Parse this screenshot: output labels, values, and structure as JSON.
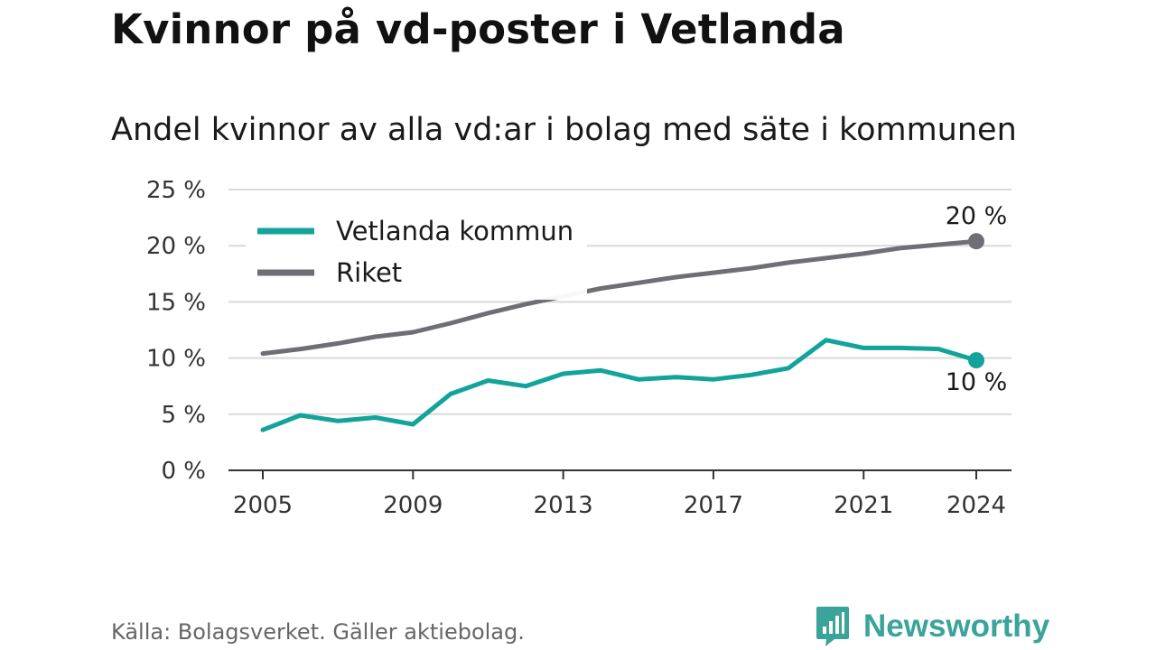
{
  "header": {
    "title": "Kvinnor på vd-poster i Vetlanda",
    "subtitle": "Andel kvinnor av alla vd:ar i bolag med säte i kommunen"
  },
  "footer": {
    "source": "Källa: Bolagsverket. Gäller aktiebolag.",
    "brand": "Newsworthy",
    "brand_icon": "newsworthy-logo-icon"
  },
  "colors": {
    "vetlanda": "#12a39a",
    "riket": "#6f6e74",
    "grid": "#d9d9d9",
    "axis": "#333333",
    "brand": "#3aa39a"
  },
  "chart_data": {
    "type": "line",
    "x": [
      2005,
      2006,
      2007,
      2008,
      2009,
      2010,
      2011,
      2012,
      2013,
      2014,
      2015,
      2016,
      2017,
      2018,
      2019,
      2020,
      2021,
      2022,
      2023,
      2024
    ],
    "x_ticks": [
      2005,
      2009,
      2013,
      2017,
      2021,
      2024
    ],
    "x_tick_labels": [
      "2005",
      "2009",
      "2013",
      "2017",
      "2021",
      "2024"
    ],
    "y_ticks": [
      0,
      5,
      10,
      15,
      20,
      25
    ],
    "y_tick_labels": [
      "0 %",
      "5 %",
      "10 %",
      "15 %",
      "20 %",
      "25 %"
    ],
    "ylim": [
      0,
      25
    ],
    "xlim": [
      2005,
      2024
    ],
    "grid": true,
    "legend_position": "top-left",
    "series": [
      {
        "name": "Vetlanda kommun",
        "color": "#12a39a",
        "values": [
          3.6,
          4.9,
          4.4,
          4.7,
          4.1,
          6.8,
          8.0,
          7.5,
          8.6,
          8.9,
          8.1,
          8.3,
          8.1,
          8.5,
          9.1,
          11.6,
          10.9,
          10.9,
          10.8,
          9.8
        ],
        "end_label": "10 %"
      },
      {
        "name": "Riket",
        "color": "#6f6e74",
        "values": [
          10.4,
          10.8,
          11.3,
          11.9,
          12.3,
          13.1,
          14.0,
          14.8,
          15.5,
          16.2,
          16.7,
          17.2,
          17.6,
          18.0,
          18.5,
          18.9,
          19.3,
          19.8,
          20.1,
          20.4
        ],
        "end_label": "20 %"
      }
    ]
  }
}
